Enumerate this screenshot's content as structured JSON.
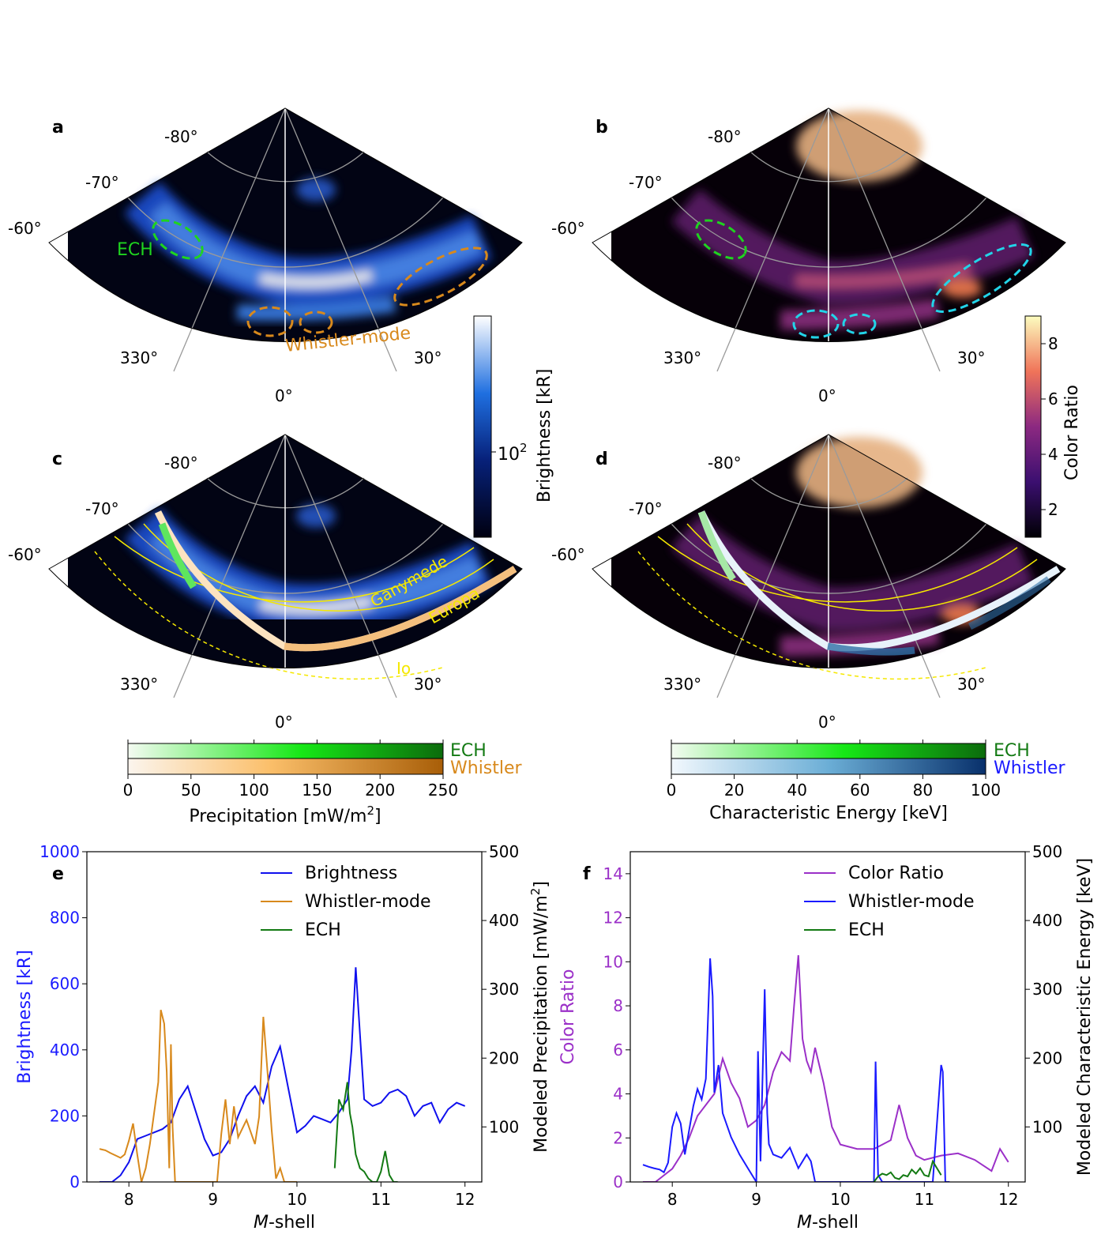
{
  "panels": {
    "a": {
      "letter": "a"
    },
    "b": {
      "letter": "b"
    },
    "c": {
      "letter": "c"
    },
    "d": {
      "letter": "d"
    },
    "e": {
      "letter": "e"
    },
    "f": {
      "letter": "f"
    }
  },
  "polar_labels": {
    "lat": [
      "-80°",
      "-70°",
      "-60°"
    ],
    "lon": [
      "330°",
      "0°",
      "30°"
    ]
  },
  "annotations": {
    "ech": "ECH",
    "whistler_mode": "Whistler-mode",
    "ganymede": "Ganymede",
    "europa": "Europa",
    "io": "Io"
  },
  "colorbars": {
    "brightness": {
      "label": "Brightness [kR]",
      "tick_base": "10",
      "tick_exp": "2"
    },
    "color_ratio": {
      "label": "Color Ratio",
      "ticks": [
        "2",
        "4",
        "6",
        "8"
      ]
    },
    "precipitation": {
      "row1": "ECH",
      "row2": "Whistler",
      "label": "Precipitation [mW/m",
      "label_sup": "2",
      "label_end": "]",
      "ticks": [
        "0",
        "50",
        "100",
        "150",
        "200",
        "250"
      ]
    },
    "energy": {
      "row1": "ECH",
      "row2": "Whistler",
      "label": "Characteristic Energy [keV]",
      "ticks": [
        "0",
        "20",
        "40",
        "60",
        "80",
        "100"
      ]
    }
  },
  "colors": {
    "ech_label": "#1fd41f",
    "whistler_label": "#d8891c",
    "ech_dark": "#137a13",
    "whistler_blue": "#1a1aff",
    "io_yellow": "#f5e800",
    "color_ratio_purple": "#9b30c8",
    "brightness_blue": "#1010ee"
  },
  "chart_data": [
    {
      "type": "line",
      "panel": "e",
      "xlabel_italic": "M",
      "xlabel_rest": "-shell",
      "ylabel_left": "Brightness [kR]",
      "ylabel_right": "Modeled Precipitation  [mW/m",
      "ylabel_right_sup": "2",
      "ylabel_right_end": "]",
      "xlim": [
        7.5,
        12.2
      ],
      "ylim_left": [
        0,
        1000
      ],
      "ylim_right": [
        20,
        500
      ],
      "xticks": [
        "8",
        "9",
        "10",
        "11",
        "12"
      ],
      "yticks_left": [
        "0",
        "200",
        "400",
        "600",
        "800",
        "1000"
      ],
      "yticks_right": [
        "100",
        "200",
        "300",
        "400",
        "500"
      ],
      "legend_position": "top-right",
      "series": [
        {
          "name": "Brightness",
          "axis": "left",
          "color": "#1010ee",
          "x": [
            7.65,
            7.8,
            7.9,
            8.0,
            8.1,
            8.2,
            8.3,
            8.4,
            8.5,
            8.6,
            8.7,
            8.8,
            8.9,
            9.0,
            9.1,
            9.2,
            9.3,
            9.4,
            9.5,
            9.6,
            9.7,
            9.8,
            9.9,
            10.0,
            10.1,
            10.2,
            10.3,
            10.4,
            10.5,
            10.6,
            10.65,
            10.7,
            10.75,
            10.8,
            10.9,
            11.0,
            11.1,
            11.2,
            11.3,
            11.4,
            11.5,
            11.6,
            11.7,
            11.8,
            11.9,
            12.0
          ],
          "y": [
            0,
            0,
            20,
            60,
            130,
            140,
            150,
            160,
            180,
            250,
            290,
            210,
            130,
            80,
            90,
            130,
            200,
            260,
            290,
            240,
            350,
            410,
            280,
            150,
            170,
            200,
            190,
            180,
            210,
            250,
            400,
            650,
            450,
            250,
            230,
            240,
            270,
            280,
            260,
            200,
            230,
            240,
            180,
            220,
            240,
            230
          ]
        },
        {
          "name": "Whistler-mode",
          "axis": "right",
          "color": "#d8891c",
          "x": [
            7.65,
            7.72,
            7.78,
            7.85,
            7.9,
            7.95,
            8.0,
            8.05,
            8.1,
            8.15,
            8.2,
            8.25,
            8.3,
            8.35,
            8.38,
            8.42,
            8.45,
            8.48,
            8.5,
            8.52,
            8.55,
            8.6,
            8.7,
            8.8,
            8.9,
            9.0,
            9.05,
            9.1,
            9.15,
            9.2,
            9.25,
            9.3,
            9.4,
            9.5,
            9.55,
            9.6,
            9.65,
            9.7,
            9.75,
            9.8,
            9.85,
            9.9,
            9.95,
            10.0
          ],
          "y": [
            68,
            66,
            62,
            58,
            55,
            60,
            80,
            105,
            60,
            20,
            40,
            75,
            120,
            165,
            270,
            250,
            180,
            40,
            220,
            100,
            20,
            20,
            20,
            20,
            20,
            20,
            20,
            90,
            140,
            75,
            130,
            85,
            110,
            75,
            115,
            260,
            180,
            95,
            25,
            40,
            20,
            20,
            20,
            20
          ]
        },
        {
          "name": "ECH",
          "axis": "right",
          "color": "#137a13",
          "x": [
            10.45,
            10.5,
            10.55,
            10.6,
            10.63,
            10.66,
            10.7,
            10.75,
            10.8,
            10.85,
            10.9,
            10.95,
            11.0,
            11.05,
            11.1,
            11.15,
            11.2
          ],
          "y": [
            40,
            140,
            125,
            165,
            120,
            100,
            60,
            40,
            35,
            25,
            20,
            20,
            35,
            65,
            30,
            20,
            20
          ]
        }
      ]
    },
    {
      "type": "line",
      "panel": "f",
      "xlabel_italic": "M",
      "xlabel_rest": "-shell",
      "ylabel_left": "Color Ratio",
      "ylabel_right": "Modeled Characteristic Energy [keV]",
      "xlim": [
        7.5,
        12.2
      ],
      "ylim_left": [
        0,
        15
      ],
      "ylim_right": [
        20,
        500
      ],
      "xticks": [
        "8",
        "9",
        "10",
        "11",
        "12"
      ],
      "yticks_left": [
        "0",
        "2",
        "4",
        "6",
        "8",
        "10",
        "12",
        "14"
      ],
      "yticks_right": [
        "100",
        "200",
        "300",
        "400",
        "500"
      ],
      "legend_position": "top-right",
      "series": [
        {
          "name": "Color Ratio",
          "axis": "left",
          "color": "#9b30c8",
          "x": [
            7.65,
            7.8,
            7.9,
            8.0,
            8.1,
            8.2,
            8.3,
            8.4,
            8.5,
            8.6,
            8.7,
            8.8,
            8.9,
            9.0,
            9.1,
            9.2,
            9.3,
            9.4,
            9.45,
            9.5,
            9.55,
            9.6,
            9.65,
            9.7,
            9.8,
            9.9,
            10.0,
            10.2,
            10.4,
            10.6,
            10.7,
            10.8,
            10.9,
            11.0,
            11.2,
            11.4,
            11.6,
            11.8,
            11.9,
            12.0
          ],
          "y": [
            0,
            0,
            0.3,
            0.6,
            1.2,
            2.0,
            3.0,
            3.5,
            4.0,
            5.6,
            4.5,
            3.8,
            2.5,
            2.8,
            3.5,
            5.0,
            5.9,
            5.5,
            8.0,
            10.3,
            6.5,
            5.5,
            5.0,
            6.1,
            4.5,
            2.5,
            1.7,
            1.5,
            1.5,
            1.9,
            3.5,
            2.0,
            1.2,
            1.0,
            1.2,
            1.3,
            1.0,
            0.5,
            1.5,
            0.9
          ]
        },
        {
          "name": "Whistler-mode",
          "axis": "right",
          "color": "#1a1aff",
          "x": [
            7.65,
            7.72,
            7.78,
            7.85,
            7.9,
            7.95,
            8.0,
            8.05,
            8.1,
            8.15,
            8.2,
            8.25,
            8.3,
            8.35,
            8.4,
            8.45,
            8.48,
            8.5,
            8.55,
            8.6,
            8.7,
            8.8,
            8.9,
            9.0,
            9.02,
            9.05,
            9.1,
            9.13,
            9.15,
            9.2,
            9.3,
            9.4,
            9.5,
            9.6,
            9.65,
            9.7,
            9.8,
            9.9,
            10.0,
            10.1,
            10.2,
            10.3,
            10.4,
            10.42,
            10.45,
            10.5,
            10.6,
            10.7,
            10.8,
            10.9,
            11.0,
            11.1,
            11.2,
            11.22,
            11.25,
            11.3
          ],
          "y": [
            45,
            42,
            40,
            38,
            34,
            48,
            100,
            120,
            105,
            60,
            95,
            130,
            155,
            140,
            170,
            345,
            290,
            150,
            190,
            120,
            85,
            60,
            40,
            20,
            210,
            50,
            300,
            120,
            75,
            60,
            55,
            70,
            40,
            60,
            50,
            20,
            20,
            20,
            20,
            20,
            20,
            20,
            20,
            195,
            30,
            20,
            20,
            20,
            20,
            20,
            20,
            20,
            190,
            180,
            20,
            20
          ]
        },
        {
          "name": "ECH",
          "axis": "right",
          "color": "#137a13",
          "x": [
            10.4,
            10.45,
            10.5,
            10.55,
            10.6,
            10.65,
            10.7,
            10.75,
            10.8,
            10.85,
            10.9,
            10.95,
            11.0,
            11.05,
            11.1,
            11.15,
            11.2
          ],
          "y": [
            20,
            28,
            32,
            30,
            34,
            26,
            24,
            30,
            28,
            38,
            32,
            40,
            30,
            28,
            50,
            40,
            30
          ]
        }
      ]
    }
  ]
}
